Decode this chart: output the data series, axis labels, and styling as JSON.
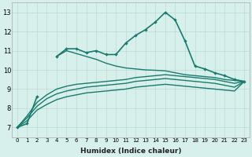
{
  "xlabel": "Humidex (Indice chaleur)",
  "x": [
    0,
    1,
    2,
    3,
    4,
    5,
    6,
    7,
    8,
    9,
    10,
    11,
    12,
    13,
    14,
    15,
    16,
    17,
    18,
    19,
    20,
    21,
    22,
    23
  ],
  "line_marker": [
    7.0,
    7.2,
    8.6,
    null,
    10.7,
    11.1,
    11.1,
    10.9,
    11.0,
    10.8,
    10.8,
    11.4,
    11.8,
    12.1,
    12.5,
    13.0,
    12.6,
    11.5,
    10.2,
    10.05,
    9.85,
    9.7,
    9.5,
    9.4
  ],
  "line_flat": [
    null,
    null,
    null,
    null,
    10.7,
    11.0,
    10.85,
    10.7,
    10.55,
    10.35,
    10.2,
    10.1,
    10.05,
    10.0,
    9.98,
    9.95,
    9.85,
    9.75,
    9.7,
    9.65,
    9.6,
    9.5,
    9.45,
    9.4
  ],
  "line_mid1": [
    7.0,
    7.6,
    8.3,
    8.7,
    9.0,
    9.15,
    9.25,
    9.3,
    9.35,
    9.4,
    9.45,
    9.5,
    9.6,
    9.65,
    9.7,
    9.75,
    9.7,
    9.65,
    9.6,
    9.55,
    9.5,
    9.4,
    9.3,
    9.4
  ],
  "line_mid2": [
    7.0,
    7.5,
    8.1,
    8.5,
    8.75,
    8.9,
    9.0,
    9.1,
    9.15,
    9.2,
    9.25,
    9.3,
    9.4,
    9.45,
    9.5,
    9.55,
    9.5,
    9.45,
    9.4,
    9.35,
    9.3,
    9.2,
    9.1,
    9.4
  ],
  "line_low": [
    7.0,
    7.35,
    7.9,
    8.2,
    8.45,
    8.6,
    8.7,
    8.8,
    8.85,
    8.9,
    8.95,
    9.0,
    9.1,
    9.15,
    9.2,
    9.25,
    9.2,
    9.15,
    9.1,
    9.05,
    9.0,
    8.95,
    8.9,
    9.4
  ],
  "line_color": "#1a7a6e",
  "bg_color": "#d8f0ec",
  "grid_color": "#c0ddd8",
  "ylim": [
    6.5,
    13.5
  ],
  "xlim": [
    -0.5,
    23.5
  ],
  "yticks": [
    7,
    8,
    9,
    10,
    11,
    12,
    13
  ],
  "xticks": [
    0,
    1,
    2,
    3,
    4,
    5,
    6,
    7,
    8,
    9,
    10,
    11,
    12,
    13,
    14,
    15,
    16,
    17,
    18,
    19,
    20,
    21,
    22,
    23
  ]
}
